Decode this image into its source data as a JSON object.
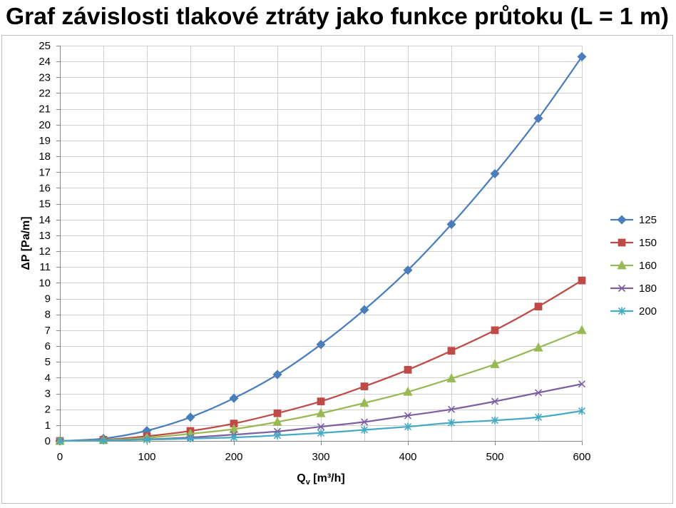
{
  "chart_data": {
    "type": "line",
    "title": "Graf závislosti tlakové ztráty jako funkce průtoku (L = 1 m)",
    "xlabel": {
      "symbol": "Q",
      "subscript": "v",
      "unit": " [m³/h]"
    },
    "ylabel": "ΔP [Pa/m]",
    "x": [
      0,
      50,
      100,
      150,
      200,
      250,
      300,
      350,
      400,
      450,
      500,
      550,
      600
    ],
    "xlim": [
      0,
      600
    ],
    "ylim": [
      0,
      25
    ],
    "xticks": [
      0,
      100,
      200,
      300,
      400,
      500,
      600
    ],
    "yticks": [
      0,
      1,
      2,
      3,
      4,
      5,
      6,
      7,
      8,
      9,
      10,
      11,
      12,
      13,
      14,
      15,
      16,
      17,
      18,
      19,
      20,
      21,
      22,
      23,
      24,
      25
    ],
    "grid": {
      "visible": true,
      "x_interval": 50,
      "y_interval": 1
    },
    "legend": "right",
    "smoothed": true,
    "series": [
      {
        "name": "125",
        "color": "#4A7EBB",
        "marker": "diamond",
        "values": [
          0,
          0.15,
          0.65,
          1.5,
          2.7,
          4.2,
          6.1,
          8.3,
          10.8,
          13.7,
          16.9,
          20.4,
          24.3
        ]
      },
      {
        "name": "150",
        "color": "#BE4B48",
        "marker": "square",
        "values": [
          0,
          0.07,
          0.3,
          0.63,
          1.1,
          1.75,
          2.5,
          3.45,
          4.5,
          5.7,
          7.0,
          8.5,
          10.15
        ]
      },
      {
        "name": "160",
        "color": "#98B954",
        "marker": "triangle",
        "values": [
          0,
          0.05,
          0.2,
          0.45,
          0.75,
          1.2,
          1.75,
          2.4,
          3.1,
          3.95,
          4.85,
          5.9,
          7.0
        ]
      },
      {
        "name": "180",
        "color": "#7D60A0",
        "marker": "x",
        "values": [
          0,
          0.03,
          0.1,
          0.22,
          0.4,
          0.6,
          0.9,
          1.2,
          1.6,
          2.0,
          2.5,
          3.05,
          3.6
        ]
      },
      {
        "name": "200",
        "color": "#46AAC5",
        "marker": "asterisk",
        "values": [
          0,
          0.02,
          0.08,
          0.15,
          0.22,
          0.35,
          0.5,
          0.7,
          0.9,
          1.15,
          1.3,
          1.5,
          1.9
        ]
      }
    ]
  }
}
